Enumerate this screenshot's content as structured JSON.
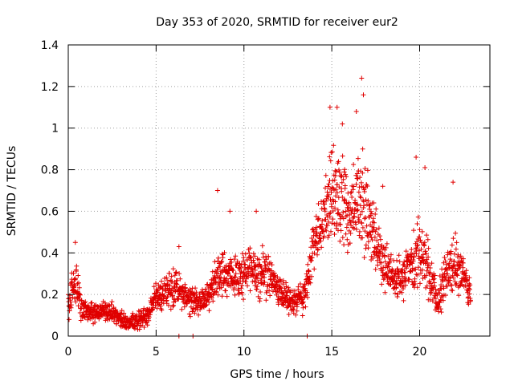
{
  "chart_data": {
    "type": "scatter",
    "title": "Day 353 of 2020, SRMTID for receiver eur2",
    "xlabel": "GPS time / hours",
    "ylabel": "SRMTID / TECUs",
    "xlim": [
      0,
      24
    ],
    "ylim": [
      0,
      1.4
    ],
    "xticks": [
      0,
      5,
      10,
      15,
      20
    ],
    "xtick_labels": [
      "0",
      "5",
      "10",
      "15",
      "20"
    ],
    "yticks": [
      0,
      0.2,
      0.4,
      0.6,
      0.8,
      1.0,
      1.2,
      1.4
    ],
    "ytick_labels": [
      "0",
      "0.2",
      "0.4",
      "0.6",
      "0.8",
      "1",
      "1.2",
      "1.4"
    ],
    "grid": true,
    "marker": "+",
    "color": "#e00000",
    "series": [
      {
        "name": "eur2",
        "envelope": [
          [
            0.0,
            0.15,
            0.12
          ],
          [
            0.25,
            0.25,
            0.12
          ],
          [
            0.5,
            0.22,
            0.12
          ],
          [
            0.75,
            0.14,
            0.07
          ],
          [
            1.0,
            0.13,
            0.06
          ],
          [
            1.5,
            0.11,
            0.05
          ],
          [
            2.0,
            0.12,
            0.05
          ],
          [
            2.5,
            0.11,
            0.05
          ],
          [
            3.0,
            0.09,
            0.05
          ],
          [
            3.5,
            0.06,
            0.04
          ],
          [
            4.0,
            0.07,
            0.05
          ],
          [
            4.5,
            0.1,
            0.05
          ],
          [
            5.0,
            0.2,
            0.07
          ],
          [
            5.5,
            0.22,
            0.08
          ],
          [
            6.0,
            0.24,
            0.09
          ],
          [
            6.5,
            0.2,
            0.08
          ],
          [
            7.0,
            0.18,
            0.08
          ],
          [
            7.5,
            0.16,
            0.06
          ],
          [
            8.0,
            0.2,
            0.08
          ],
          [
            8.5,
            0.28,
            0.12
          ],
          [
            9.0,
            0.3,
            0.1
          ],
          [
            9.5,
            0.3,
            0.12
          ],
          [
            10.0,
            0.3,
            0.14
          ],
          [
            10.5,
            0.32,
            0.14
          ],
          [
            11.0,
            0.3,
            0.12
          ],
          [
            11.5,
            0.28,
            0.12
          ],
          [
            12.0,
            0.22,
            0.08
          ],
          [
            12.5,
            0.18,
            0.07
          ],
          [
            13.0,
            0.16,
            0.07
          ],
          [
            13.5,
            0.22,
            0.1
          ],
          [
            14.0,
            0.45,
            0.12
          ],
          [
            14.5,
            0.55,
            0.15
          ],
          [
            15.0,
            0.7,
            0.22
          ],
          [
            15.5,
            0.65,
            0.22
          ],
          [
            16.0,
            0.55,
            0.18
          ],
          [
            16.5,
            0.65,
            0.25
          ],
          [
            17.0,
            0.6,
            0.22
          ],
          [
            17.5,
            0.45,
            0.15
          ],
          [
            18.0,
            0.35,
            0.12
          ],
          [
            18.5,
            0.28,
            0.1
          ],
          [
            19.0,
            0.28,
            0.1
          ],
          [
            19.5,
            0.35,
            0.15
          ],
          [
            20.0,
            0.4,
            0.18
          ],
          [
            20.5,
            0.32,
            0.15
          ],
          [
            21.0,
            0.15,
            0.08
          ],
          [
            21.5,
            0.3,
            0.12
          ],
          [
            22.0,
            0.35,
            0.15
          ],
          [
            22.5,
            0.3,
            0.1
          ],
          [
            22.9,
            0.2,
            0.08
          ]
        ],
        "spikes": [
          [
            0.4,
            0.45
          ],
          [
            8.5,
            0.7
          ],
          [
            14.9,
            1.1
          ],
          [
            15.3,
            1.1
          ],
          [
            16.7,
            1.24
          ],
          [
            16.8,
            1.16
          ],
          [
            19.8,
            0.86
          ],
          [
            20.3,
            0.81
          ],
          [
            21.9,
            0.74
          ],
          [
            10.7,
            0.6
          ],
          [
            6.3,
            0.43
          ],
          [
            9.2,
            0.6
          ],
          [
            17.9,
            0.72
          ],
          [
            15.6,
            1.02
          ],
          [
            16.4,
            1.08
          ]
        ],
        "zero_points": [
          6.3,
          7.1,
          13.6
        ]
      }
    ]
  }
}
